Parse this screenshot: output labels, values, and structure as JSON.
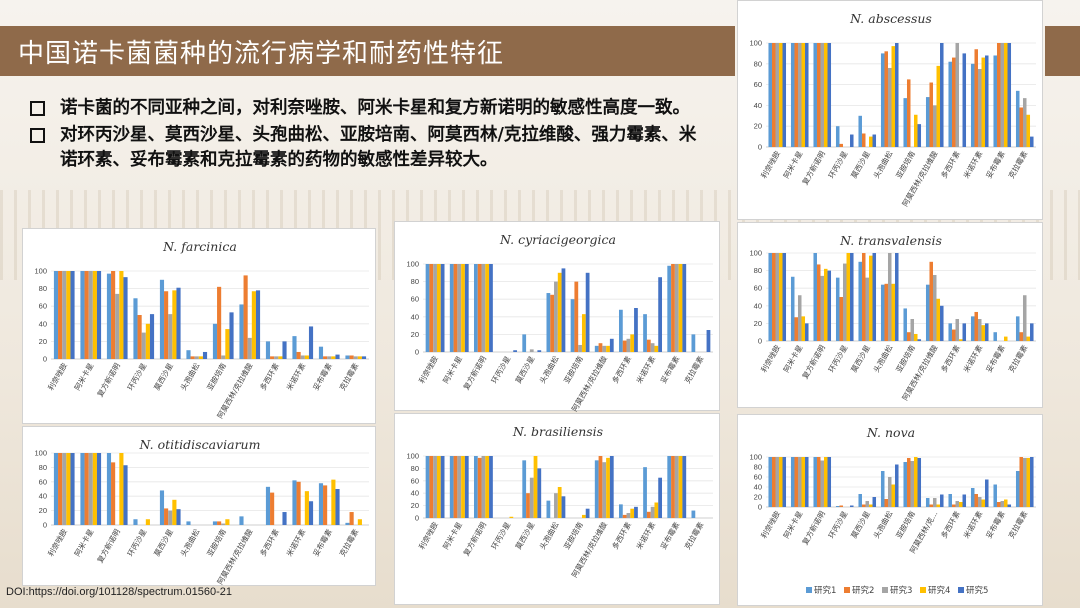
{
  "slide": {
    "title": "中国诺卡菌菌种的流行病学和耐药性特征",
    "bullets": [
      "诺卡菌的不同亚种之间，对利奈唑胺、阿米卡星和复方新诺明的敏感性高度一致。",
      "对环丙沙星、莫西沙星、头孢曲松、亚胺培南、阿莫西林/克拉维酸、强力霉素、米诺环素、妥布霉素和克拉霉素的药物的敏感性差异较大。"
    ],
    "doi": "DOI:https://doi.org/101128/spectrum.01560-21"
  },
  "colors": [
    "#5b9bd5",
    "#ed7d31",
    "#a5a5a5",
    "#ffc000",
    "#4472c4"
  ],
  "chart_data": [
    {
      "type": "bar",
      "title": "N. abscessus",
      "categories": [
        "利奈唑胺",
        "阿米卡星",
        "复方新诺明",
        "环丙沙星",
        "莫西沙星",
        "头孢曲松",
        "亚胺培南",
        "阿莫西林/克拉维酸",
        "多西环素",
        "米诺环素",
        "妥布霉素",
        "克拉霉素"
      ],
      "series": [
        {
          "name": "研究1",
          "values": [
            100,
            100,
            100,
            20,
            30,
            90,
            47,
            48,
            82,
            80,
            88,
            54
          ]
        },
        {
          "name": "研究2",
          "values": [
            100,
            100,
            100,
            3,
            13,
            92,
            65,
            62,
            86,
            94,
            100,
            38
          ]
        },
        {
          "name": "研究3",
          "values": [
            100,
            100,
            100,
            0,
            0,
            76,
            0,
            40,
            100,
            75,
            100,
            47
          ]
        },
        {
          "name": "研究4",
          "values": [
            100,
            100,
            100,
            0,
            10,
            97,
            31,
            78,
            0,
            86,
            100,
            31
          ]
        },
        {
          "name": "研究5",
          "values": [
            100,
            100,
            100,
            12,
            12,
            100,
            22,
            100,
            90,
            88,
            100,
            10
          ]
        }
      ],
      "ylim": [
        0,
        100
      ]
    },
    {
      "type": "bar",
      "title": "N. farcinica",
      "categories": [
        "利奈唑胺",
        "阿米卡星",
        "复方新诺明",
        "环丙沙星",
        "莫西沙星",
        "头孢曲松",
        "亚胺培南",
        "阿莫西林/克拉维酸",
        "多西环素",
        "米诺环素",
        "妥布霉素",
        "克拉霉素"
      ],
      "series": [
        {
          "name": "研究1",
          "values": [
            100,
            100,
            97,
            69,
            90,
            10,
            40,
            62,
            20,
            26,
            14,
            4
          ]
        },
        {
          "name": "研究2",
          "values": [
            100,
            100,
            100,
            50,
            77,
            3,
            82,
            95,
            3,
            8,
            3,
            4
          ]
        },
        {
          "name": "研究3",
          "values": [
            100,
            100,
            74,
            30,
            51,
            3,
            4,
            24,
            3,
            4,
            3,
            3
          ]
        },
        {
          "name": "研究4",
          "values": [
            100,
            100,
            100,
            40,
            78,
            3,
            34,
            77,
            3,
            4,
            3,
            3
          ]
        },
        {
          "name": "研究5",
          "values": [
            100,
            100,
            93,
            51,
            81,
            8,
            53,
            78,
            20,
            37,
            5,
            3
          ]
        }
      ],
      "ylim": [
        0,
        100
      ]
    },
    {
      "type": "bar",
      "title": "N. cyriacigeorgica",
      "categories": [
        "利奈唑胺",
        "阿米卡星",
        "复方新诺明",
        "环丙沙星",
        "莫西沙星",
        "头孢曲松",
        "亚胺培南",
        "阿莫西林/克拉维酸",
        "多西环素",
        "米诺环素",
        "妥布霉素",
        "克拉霉素"
      ],
      "series": [
        {
          "name": "研究1",
          "values": [
            100,
            100,
            100,
            0,
            20,
            67,
            60,
            7,
            48,
            43,
            98,
            20
          ]
        },
        {
          "name": "研究2",
          "values": [
            100,
            100,
            100,
            0,
            0,
            65,
            80,
            10,
            13,
            14,
            100,
            0
          ]
        },
        {
          "name": "研究3",
          "values": [
            100,
            100,
            100,
            0,
            3,
            80,
            8,
            7,
            15,
            10,
            100,
            0
          ]
        },
        {
          "name": "研究4",
          "values": [
            100,
            100,
            100,
            0,
            0,
            90,
            43,
            7,
            20,
            7,
            100,
            0
          ]
        },
        {
          "name": "研究5",
          "values": [
            100,
            100,
            100,
            2,
            2,
            95,
            90,
            15,
            50,
            85,
            100,
            25
          ]
        }
      ],
      "ylim": [
        0,
        100
      ]
    },
    {
      "type": "bar",
      "title": "N. transvalensis",
      "categories": [
        "利奈唑胺",
        "阿米卡星",
        "复方新诺明",
        "环丙沙星",
        "莫西沙星",
        "头孢曲松",
        "亚胺培南",
        "阿莫西林/克拉维酸",
        "多西环素",
        "米诺环素",
        "妥布霉素",
        "克拉霉素"
      ],
      "series": [
        {
          "name": "研究1",
          "values": [
            100,
            73,
            100,
            72,
            90,
            64,
            37,
            64,
            20,
            28,
            10,
            28
          ]
        },
        {
          "name": "研究2",
          "values": [
            100,
            27,
            87,
            50,
            100,
            65,
            10,
            90,
            13,
            33,
            0,
            10
          ]
        },
        {
          "name": "研究3",
          "values": [
            100,
            52,
            74,
            88,
            72,
            100,
            25,
            75,
            25,
            25,
            0,
            52
          ]
        },
        {
          "name": "研究4",
          "values": [
            100,
            28,
            82,
            100,
            97,
            65,
            8,
            48,
            2,
            18,
            5,
            5
          ]
        },
        {
          "name": "研究5",
          "values": [
            100,
            20,
            80,
            100,
            100,
            100,
            2,
            40,
            20,
            20,
            0,
            20
          ]
        }
      ],
      "ylim": [
        0,
        100
      ]
    },
    {
      "type": "bar",
      "title": "N. otitidiscaviarum",
      "categories": [
        "利奈唑胺",
        "阿米卡星",
        "复方新诺明",
        "环丙沙星",
        "莫西沙星",
        "头孢曲松",
        "亚胺培南",
        "阿莫西林/克拉维酸",
        "多西环素",
        "米诺环素",
        "妥布霉素",
        "克拉霉素"
      ],
      "series": [
        {
          "name": "研究1",
          "values": [
            100,
            100,
            100,
            8,
            48,
            5,
            5,
            12,
            53,
            62,
            58,
            3
          ]
        },
        {
          "name": "研究2",
          "values": [
            100,
            100,
            87,
            0,
            23,
            0,
            5,
            0,
            45,
            60,
            55,
            18
          ]
        },
        {
          "name": "研究3",
          "values": [
            100,
            100,
            0,
            0,
            20,
            0,
            2,
            0,
            0,
            0,
            0,
            0
          ]
        },
        {
          "name": "研究4",
          "values": [
            100,
            100,
            100,
            8,
            35,
            0,
            8,
            0,
            0,
            47,
            63,
            8
          ]
        },
        {
          "name": "研究5",
          "values": [
            100,
            100,
            83,
            0,
            22,
            0,
            0,
            0,
            18,
            33,
            50,
            0
          ]
        }
      ],
      "ylim": [
        0,
        100
      ]
    },
    {
      "type": "bar",
      "title": "N. brasiliensis",
      "categories": [
        "利奈唑胺",
        "阿米卡星",
        "复方新诺明",
        "环丙沙星",
        "莫西沙星",
        "头孢曲松",
        "亚胺培南",
        "阿莫西林/克拉维酸",
        "多西环素",
        "米诺环素",
        "妥布霉素",
        "克拉霉素"
      ],
      "series": [
        {
          "name": "研究1",
          "values": [
            100,
            100,
            100,
            0,
            93,
            28,
            0,
            93,
            22,
            82,
            100,
            12
          ]
        },
        {
          "name": "研究2",
          "values": [
            100,
            100,
            97,
            0,
            40,
            0,
            0,
            100,
            5,
            10,
            100,
            0
          ]
        },
        {
          "name": "研究3",
          "values": [
            100,
            100,
            100,
            0,
            65,
            40,
            0,
            90,
            8,
            18,
            100,
            0
          ]
        },
        {
          "name": "研究4",
          "values": [
            100,
            100,
            100,
            2,
            100,
            50,
            5,
            97,
            15,
            25,
            100,
            0
          ]
        },
        {
          "name": "研究5",
          "values": [
            100,
            100,
            100,
            0,
            80,
            35,
            15,
            100,
            18,
            65,
            100,
            0
          ]
        }
      ],
      "ylim": [
        0,
        100
      ]
    },
    {
      "type": "bar",
      "title": "N. nova",
      "categories": [
        "利奈唑胺",
        "阿米卡星",
        "复方新诺明",
        "环丙沙星",
        "莫西沙星",
        "头孢曲松",
        "亚胺培南",
        "阿莫西林/克...",
        "多西环素",
        "米诺环素",
        "妥布霉素",
        "克拉霉素"
      ],
      "series": [
        {
          "name": "研究1",
          "values": [
            100,
            100,
            100,
            2,
            26,
            72,
            90,
            18,
            26,
            38,
            45,
            72
          ]
        },
        {
          "name": "研究2",
          "values": [
            100,
            100,
            100,
            3,
            5,
            16,
            98,
            5,
            5,
            26,
            10,
            100
          ]
        },
        {
          "name": "研究3",
          "values": [
            100,
            100,
            93,
            0,
            12,
            60,
            92,
            18,
            12,
            20,
            12,
            98
          ]
        },
        {
          "name": "研究4",
          "values": [
            100,
            100,
            100,
            0,
            5,
            45,
            100,
            5,
            10,
            15,
            15,
            98
          ]
        },
        {
          "name": "研究5",
          "values": [
            100,
            100,
            100,
            3,
            20,
            85,
            98,
            25,
            25,
            55,
            5,
            100
          ]
        }
      ],
      "ylim": [
        0,
        100
      ],
      "legend": "bottom"
    }
  ]
}
